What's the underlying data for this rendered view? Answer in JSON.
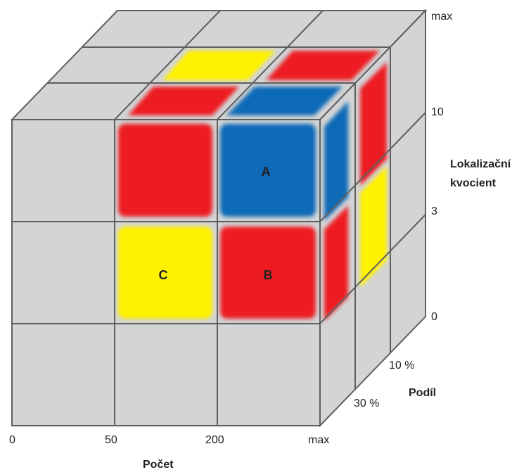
{
  "colors": {
    "grey": "#d3d4d5",
    "grid_line": "#5f5f5f",
    "red": "#ed1c24",
    "blue": "#0a6bb7",
    "yellow": "#fff200",
    "text": "#231f20"
  },
  "axes": {
    "x": {
      "title": "Počet",
      "ticks": [
        "0",
        "50",
        "200",
        "max"
      ]
    },
    "y": {
      "title_line1": "Lokalizační",
      "title_line2": "kvocient",
      "ticks": [
        "0",
        "3",
        "10",
        "max"
      ]
    },
    "z": {
      "title": "Podíl",
      "ticks": [
        "10 %",
        "30 %"
      ]
    }
  },
  "cells": {
    "a": {
      "label": "A",
      "color": "blue"
    },
    "b": {
      "label": "B",
      "color": "red"
    },
    "c": {
      "label": "C",
      "color": "yellow"
    }
  }
}
